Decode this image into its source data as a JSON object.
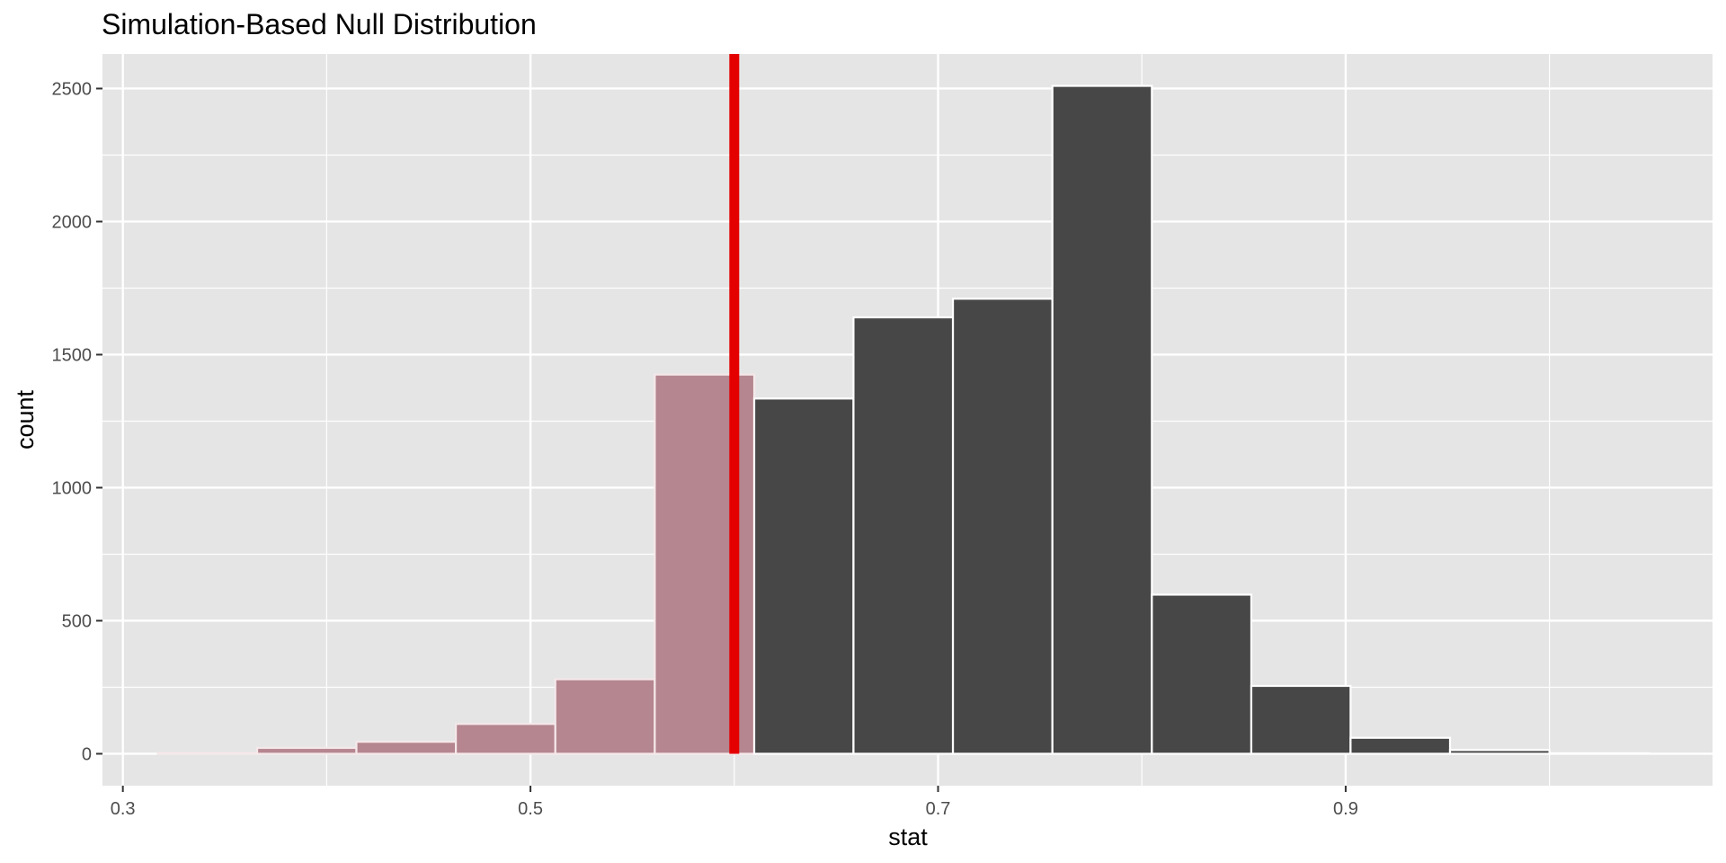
{
  "chart_data": {
    "type": "bar",
    "title": "Simulation-Based Null Distribution",
    "xlabel": "stat",
    "ylabel": "count",
    "xlim": [
      0.29,
      1.08
    ],
    "ylim": [
      -120,
      2630
    ],
    "x_ticks": [
      0.3,
      0.5,
      0.7,
      0.9
    ],
    "x_tick_labels": [
      "0.3",
      "0.5",
      "0.7",
      "0.9"
    ],
    "x_minor_ticks": [
      0.4,
      0.6,
      0.8,
      1.0
    ],
    "y_ticks": [
      0,
      500,
      1000,
      1500,
      2000,
      2500
    ],
    "y_tick_labels": [
      "0",
      "500",
      "1000",
      "1500",
      "2000",
      "2500"
    ],
    "y_minor_ticks": [
      250,
      750,
      1250,
      1750,
      2250
    ],
    "bin_width": 0.04878,
    "bins": [
      {
        "x0": 0.3171,
        "x1": 0.3659,
        "count": 3,
        "shaded": true
      },
      {
        "x0": 0.3659,
        "x1": 0.4146,
        "count": 22,
        "shaded": true
      },
      {
        "x0": 0.4146,
        "x1": 0.4634,
        "count": 45,
        "shaded": true
      },
      {
        "x0": 0.4634,
        "x1": 0.5122,
        "count": 112,
        "shaded": true
      },
      {
        "x0": 0.5122,
        "x1": 0.561,
        "count": 280,
        "shaded": true
      },
      {
        "x0": 0.561,
        "x1": 0.6098,
        "count": 1425,
        "shaded": true
      },
      {
        "x0": 0.6098,
        "x1": 0.6585,
        "count": 1335,
        "shaded": false
      },
      {
        "x0": 0.6585,
        "x1": 0.7073,
        "count": 1640,
        "shaded": false
      },
      {
        "x0": 0.7073,
        "x1": 0.7561,
        "count": 1710,
        "shaded": false
      },
      {
        "x0": 0.7561,
        "x1": 0.8049,
        "count": 2510,
        "shaded": false
      },
      {
        "x0": 0.8049,
        "x1": 0.8537,
        "count": 598,
        "shaded": false
      },
      {
        "x0": 0.8537,
        "x1": 0.9024,
        "count": 255,
        "shaded": false
      },
      {
        "x0": 0.9024,
        "x1": 0.9512,
        "count": 60,
        "shaded": false
      },
      {
        "x0": 0.9512,
        "x1": 1.0,
        "count": 14,
        "shaded": false
      },
      {
        "x0": 1.0,
        "x1": 1.0488,
        "count": 2,
        "shaded": false
      }
    ],
    "observed_stat": 0.6,
    "grid": true,
    "colors": {
      "panel_background": "#e5e5e5",
      "grid": "#ffffff",
      "bar_fill": "#474747",
      "bar_outline": "#ffffff",
      "shaded_fill": "#b5868f",
      "shaded_outline": "#f5e8ea",
      "observed_line": "#e50000"
    }
  }
}
